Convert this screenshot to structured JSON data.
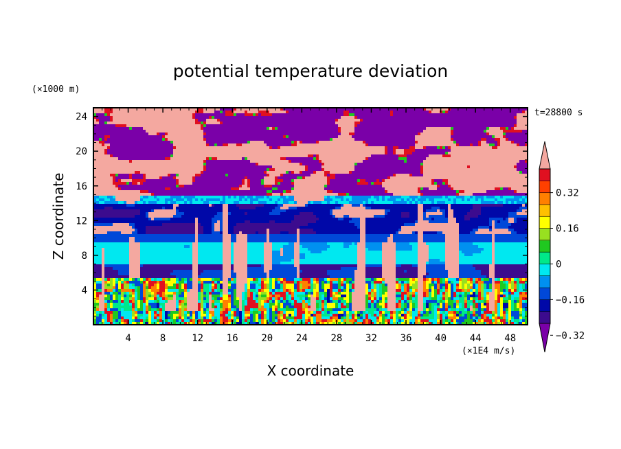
{
  "chart_data": {
    "type": "heatmap",
    "title": "potential temperature deviation",
    "xlabel": "X coordinate",
    "ylabel": "Z coordinate",
    "x_unit": "(×1E4 m/s)",
    "y_unit": "(×1000 m)",
    "time_label": "t=28800 s",
    "xlim": [
      0,
      50
    ],
    "ylim": [
      0,
      25
    ],
    "x_ticks": [
      4,
      8,
      12,
      16,
      20,
      24,
      28,
      32,
      36,
      40,
      44,
      48
    ],
    "y_ticks": [
      4,
      8,
      12,
      16,
      20,
      24
    ],
    "x_tick_labels": [
      "4",
      "8",
      "12",
      "16",
      "20",
      "24",
      "28",
      "32",
      "36",
      "40",
      "44",
      "48"
    ],
    "y_tick_labels": [
      "4",
      "8",
      "12",
      "16",
      "20",
      "24"
    ],
    "colorbar": {
      "colors": [
        "#7a00a8",
        "#3c0b8e",
        "#0008a8",
        "#0048d8",
        "#0090f0",
        "#00e8f0",
        "#00e88a",
        "#20c820",
        "#98e020",
        "#ffff00",
        "#ffc000",
        "#ff8000",
        "#ff4000",
        "#e01020",
        "#f4a8a0"
      ],
      "levels": [
        -0.4,
        -0.36,
        -0.32,
        -0.28,
        -0.24,
        -0.2,
        -0.16,
        -0.12,
        -0.08,
        -0.04,
        0,
        0.04,
        0.08,
        0.12,
        0.16,
        0.2,
        0.24,
        0.28,
        0.32,
        0.36
      ],
      "tick_labels": [
        "0.32",
        "0.16",
        "0",
        "−0.16",
        "−0.32"
      ],
      "extend": "both"
    },
    "bands": [
      {
        "z": [
          0,
          1.5
        ],
        "pattern": "turbulent multicolor (green/yellow/red/blue)"
      },
      {
        "z": [
          1.5,
          5.5
        ],
        "pattern": "turbulent multicolor with pink plumes"
      },
      {
        "z": [
          5.5,
          7
        ],
        "pattern": "dark blue / purple with pink plumes"
      },
      {
        "z": [
          7,
          9.5
        ],
        "pattern": "cyan with pink plumes"
      },
      {
        "z": [
          9.5,
          10.5
        ],
        "pattern": "blue"
      },
      {
        "z": [
          10.5,
          14
        ],
        "pattern": "dark blue with pink patches"
      },
      {
        "z": [
          14,
          15
        ],
        "pattern": "light blue / cyan layer"
      },
      {
        "z": [
          15,
          25
        ],
        "pattern": "purple and pink patches"
      }
    ]
  }
}
